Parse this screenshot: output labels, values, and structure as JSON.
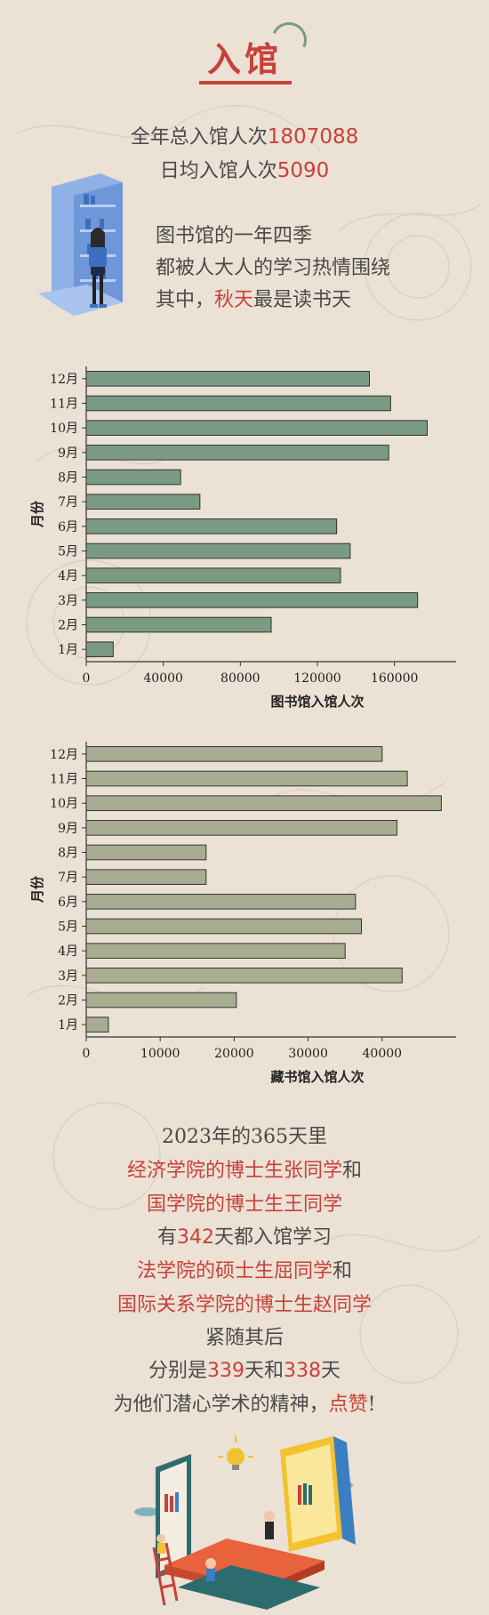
{
  "header": {
    "title": "入馆"
  },
  "stats": {
    "total_label": "全年总入馆人次",
    "total_value": "1807088",
    "daily_label": "日均入馆人次",
    "daily_value": "5090"
  },
  "intro": {
    "line1": "图书馆的一年四季",
    "line2": "都被人大人的学习热情围绕",
    "line3_pre": "其中，",
    "line3_highlight": "秋天",
    "line3_post": "最是读书天"
  },
  "colors": {
    "accent": "#c8413a",
    "bar1": "#7a9a84",
    "bar2": "#a8ad92",
    "bg": "#ebe1d4"
  },
  "chart_data": [
    {
      "type": "bar",
      "orientation": "horizontal",
      "categories": [
        "1月",
        "2月",
        "3月",
        "4月",
        "5月",
        "6月",
        "7月",
        "8月",
        "9月",
        "10月",
        "11月",
        "12月"
      ],
      "values": [
        14000,
        96000,
        172000,
        132000,
        137000,
        130000,
        59000,
        49000,
        157000,
        177000,
        158000,
        147000
      ],
      "xlabel": "图书馆入馆人次",
      "ylabel": "月份",
      "xlim": [
        0,
        192000
      ],
      "xticks": [
        "0",
        "40000",
        "80000",
        "120000",
        "160000"
      ]
    },
    {
      "type": "bar",
      "orientation": "horizontal",
      "categories": [
        "1月",
        "2月",
        "3月",
        "4月",
        "5月",
        "6月",
        "7月",
        "8月",
        "9月",
        "10月",
        "11月",
        "12月"
      ],
      "values": [
        3000,
        20300,
        42700,
        35000,
        37200,
        36400,
        16200,
        16200,
        42000,
        48000,
        43400,
        40000
      ],
      "xlabel": "藏书馆入馆人次",
      "ylabel": "月份",
      "xlim": [
        0,
        50000
      ],
      "xticks": [
        "0",
        "10000",
        "20000",
        "30000",
        "40000"
      ]
    }
  ],
  "story": {
    "l1_pre": "2023年的365天里",
    "l2_red": "经济学院的博士生张同学",
    "l2_post": "和",
    "l3_red": "国学院的博士生王同学",
    "l4_pre": "有",
    "l4_num": "342",
    "l4_post": "天都入馆学习",
    "l5_red": "法学院的硕士生屈同学",
    "l5_post": "和",
    "l6_red": "国际关系学院的博士生赵同学",
    "l7": "紧随其后",
    "l8_pre": "分别是",
    "l8_num1": "339",
    "l8_mid": "天和",
    "l8_num2": "338",
    "l8_post": "天",
    "l9_pre": "为他们潜心学术的精神，",
    "l9_red": "点赞",
    "l9_post": "!"
  }
}
